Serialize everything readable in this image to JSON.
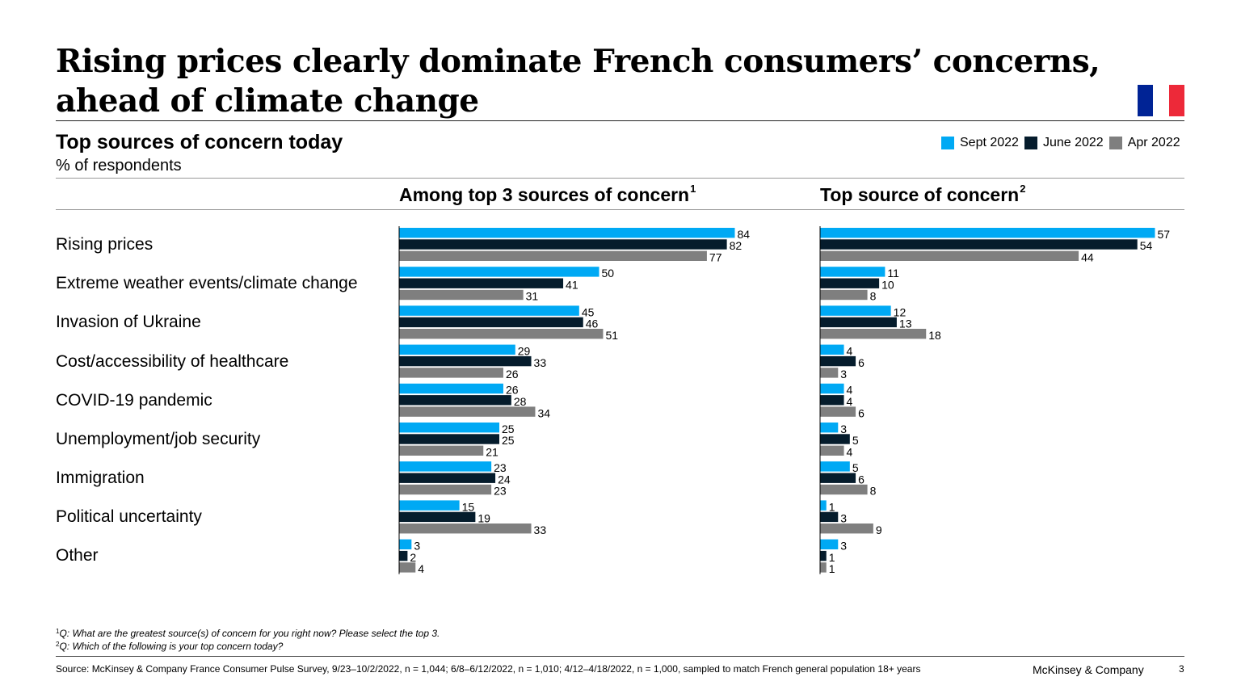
{
  "title": "Rising prices clearly dominate French consumers’ concerns, ahead of climate change",
  "flag": {
    "colors": [
      "#002395",
      "#ffffff",
      "#ed2939"
    ]
  },
  "subtitle": "Top sources of concern today",
  "unit": "% of respondents",
  "legend": [
    {
      "label": "Sept 2022",
      "color": "#00a9f4"
    },
    {
      "label": "June 2022",
      "color": "#051c2c"
    },
    {
      "label": "Apr 2022",
      "color": "#7f7f7f"
    }
  ],
  "panels": [
    {
      "title": "Among top 3 sources of concern",
      "sup": "1"
    },
    {
      "title": "Top source of concern",
      "sup": "2"
    }
  ],
  "chart_data": [
    {
      "type": "bar",
      "orientation": "horizontal",
      "title": "Among top 3 sources of concern",
      "categories": [
        "Rising prices",
        "Extreme weather events/climate change",
        "Invasion of Ukraine",
        "Cost/accessibility of healthcare",
        "COVID-19 pandemic",
        "Unemployment/job security",
        "Immigration",
        "Political uncertainty",
        "Other"
      ],
      "series": [
        {
          "name": "Sept 2022",
          "color": "#00a9f4",
          "values": [
            84,
            50,
            45,
            29,
            26,
            25,
            23,
            15,
            3
          ]
        },
        {
          "name": "June 2022",
          "color": "#051c2c",
          "values": [
            82,
            41,
            46,
            33,
            28,
            25,
            24,
            19,
            2
          ]
        },
        {
          "name": "Apr 2022",
          "color": "#7f7f7f",
          "values": [
            77,
            31,
            51,
            26,
            34,
            21,
            23,
            33,
            4
          ]
        }
      ],
      "xlim": [
        0,
        84
      ]
    },
    {
      "type": "bar",
      "orientation": "horizontal",
      "title": "Top source of concern",
      "categories": [
        "Rising prices",
        "Extreme weather events/climate change",
        "Invasion of Ukraine",
        "Cost/accessibility of healthcare",
        "COVID-19 pandemic",
        "Unemployment/job security",
        "Immigration",
        "Political uncertainty",
        "Other"
      ],
      "series": [
        {
          "name": "Sept 2022",
          "color": "#00a9f4",
          "values": [
            57,
            11,
            12,
            4,
            4,
            3,
            5,
            1,
            3
          ]
        },
        {
          "name": "June 2022",
          "color": "#051c2c",
          "values": [
            54,
            10,
            13,
            6,
            4,
            5,
            6,
            3,
            1
          ]
        },
        {
          "name": "Apr 2022",
          "color": "#7f7f7f",
          "values": [
            44,
            8,
            18,
            3,
            6,
            4,
            8,
            9,
            1
          ]
        }
      ],
      "xlim": [
        0,
        57
      ]
    }
  ],
  "footnotes": [
    {
      "sup": "1",
      "text": "Q: What are the greatest source(s) of concern for you right now? Please select the top 3."
    },
    {
      "sup": "2",
      "text": "Q: Which of the following is your top concern today?"
    }
  ],
  "source": "Source: McKinsey & Company France Consumer Pulse Survey, 9/23–10/2/2022, n = 1,044; 6/8–6/12/2022, n = 1,010; 4/12–4/18/2022, n = 1,000, sampled to match French general population 18+ years",
  "brand": "McKinsey & Company",
  "page_number": "3"
}
